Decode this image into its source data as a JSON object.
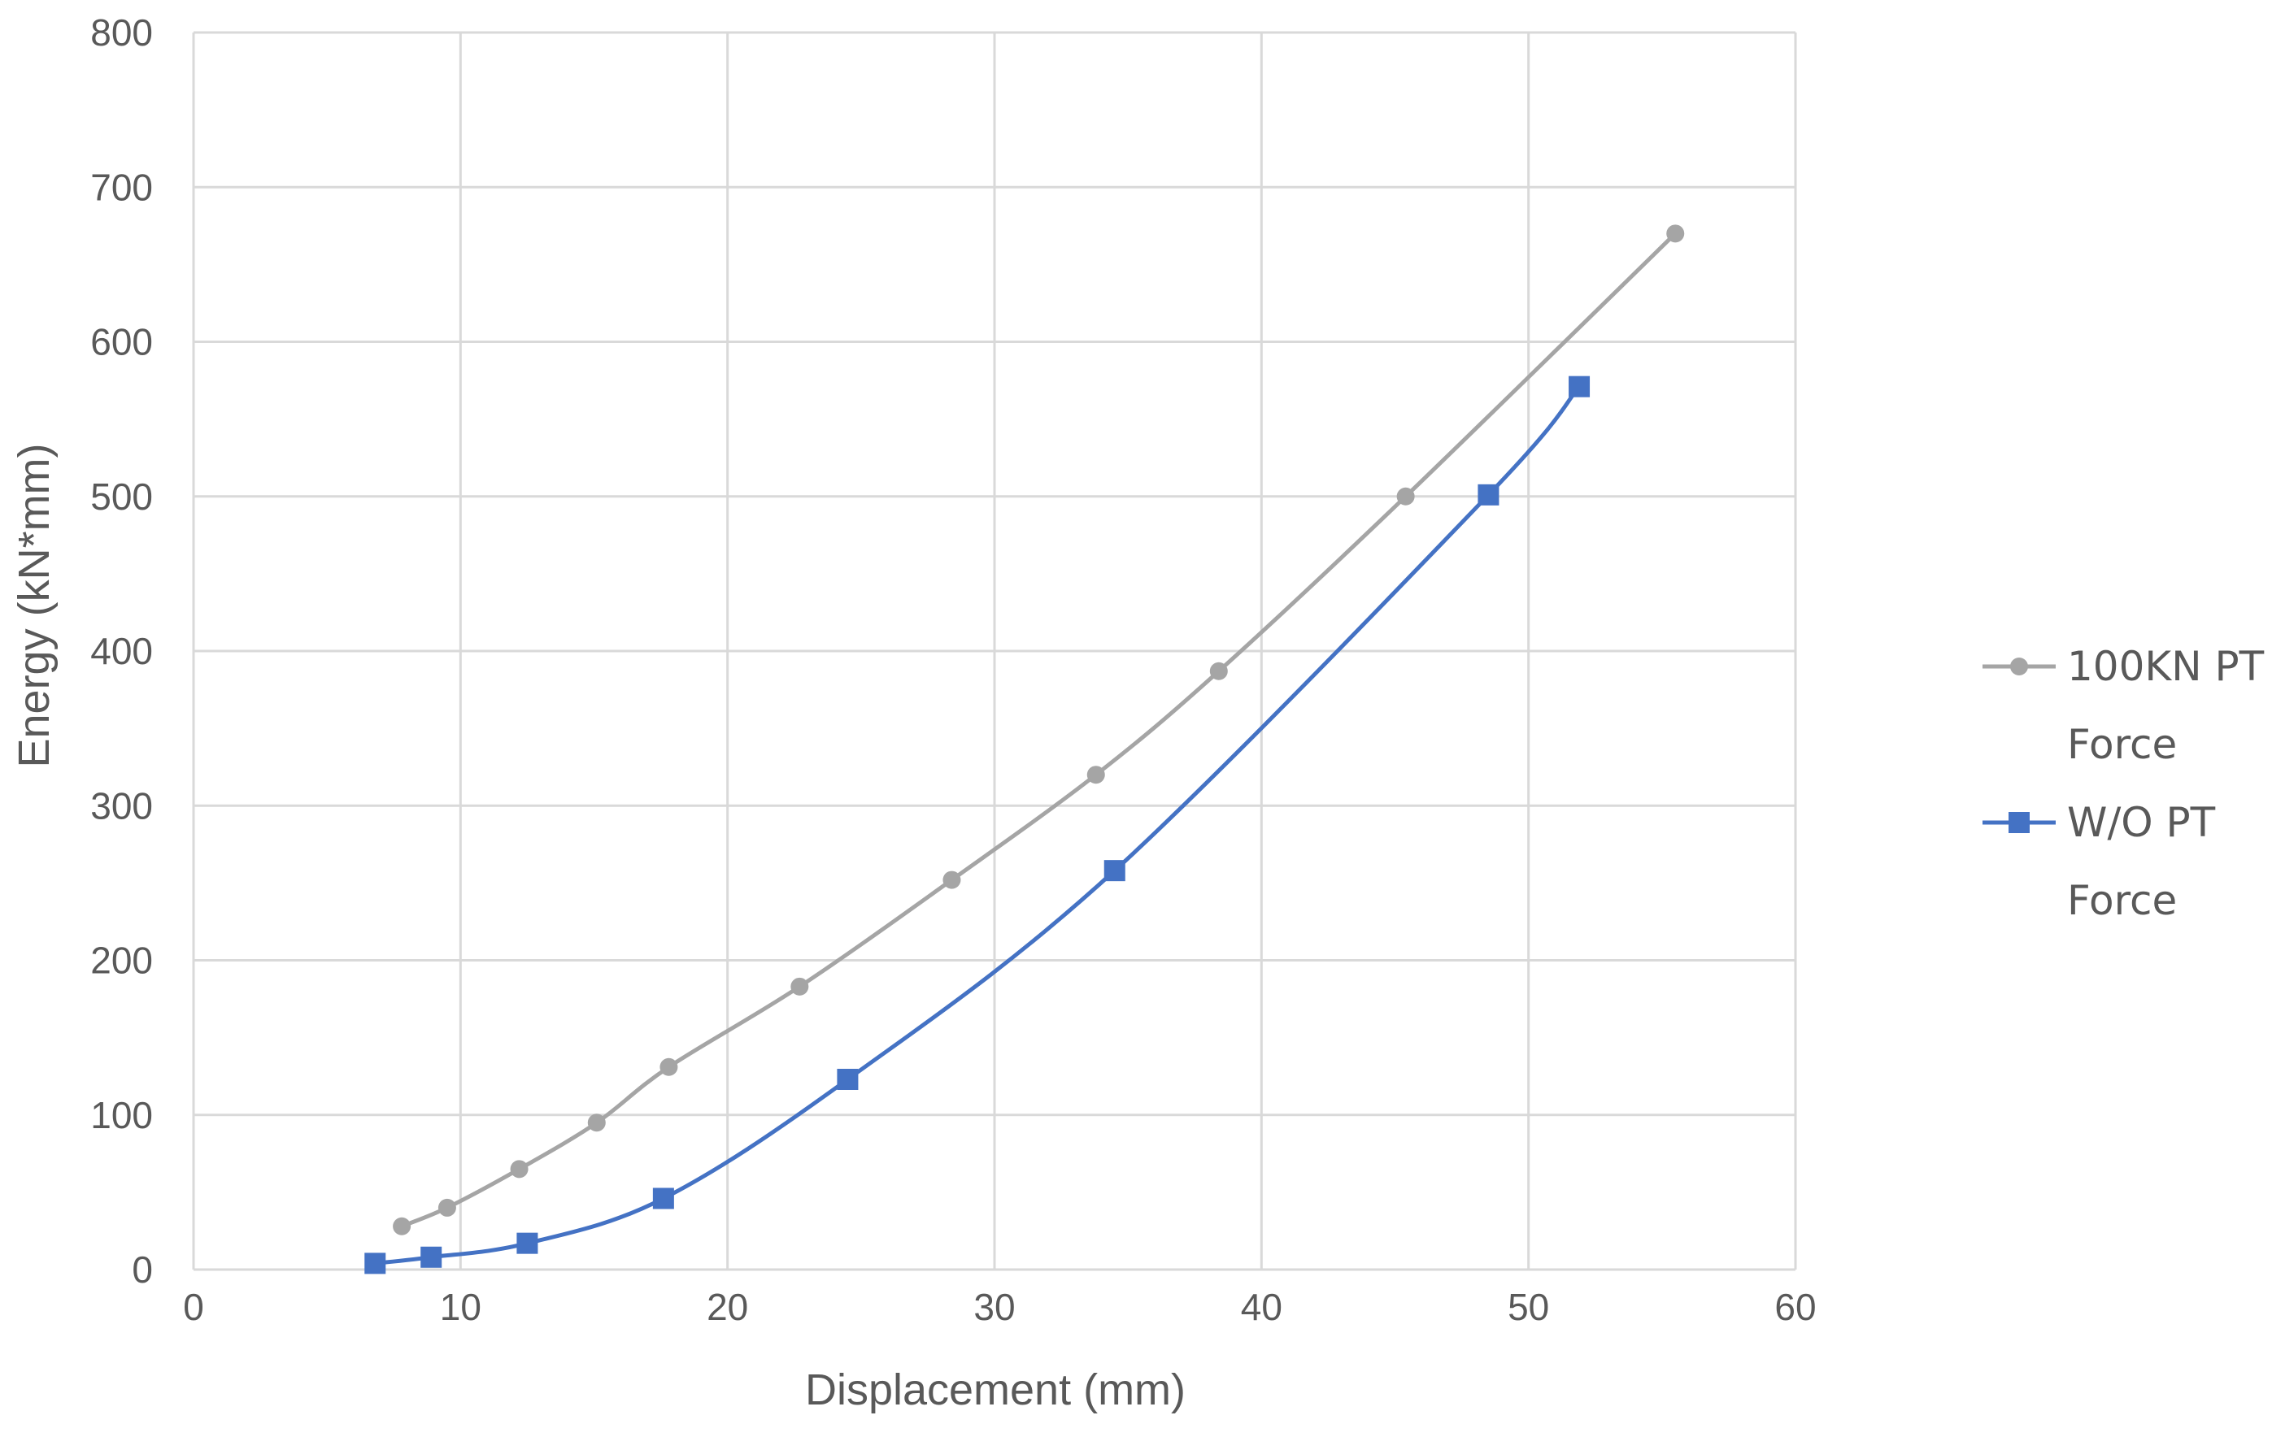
{
  "chart_data": {
    "type": "line",
    "title": "",
    "xlabel": "Displacement (mm)",
    "ylabel": "Energy (kN*mm)",
    "xlim": [
      0,
      60
    ],
    "ylim": [
      0,
      800
    ],
    "xticks": [
      0,
      10,
      20,
      30,
      40,
      50,
      60
    ],
    "yticks": [
      0,
      100,
      200,
      300,
      400,
      500,
      600,
      700,
      800
    ],
    "grid": true,
    "legend_position": "right",
    "series": [
      {
        "name": "100KN PT Force",
        "name_lines": [
          "100KN PT",
          "Force"
        ],
        "color": "#a5a5a5",
        "marker": "circle",
        "smooth": true,
        "points": [
          [
            7.8,
            28
          ],
          [
            9.5,
            40
          ],
          [
            12.2,
            65
          ],
          [
            15.1,
            95
          ],
          [
            17.8,
            131
          ],
          [
            22.7,
            183
          ],
          [
            28.4,
            252
          ],
          [
            33.8,
            320
          ],
          [
            38.4,
            387
          ],
          [
            45.4,
            500
          ],
          [
            55.5,
            670
          ]
        ]
      },
      {
        "name": "W/O PT Force",
        "name_lines": [
          "W/O PT",
          "Force"
        ],
        "color": "#4472c4",
        "marker": "square",
        "smooth": true,
        "points": [
          [
            6.8,
            4
          ],
          [
            8.9,
            8
          ],
          [
            12.5,
            17
          ],
          [
            17.6,
            46
          ],
          [
            24.5,
            123
          ],
          [
            34.5,
            258
          ],
          [
            48.5,
            501
          ],
          [
            51.9,
            571
          ]
        ]
      }
    ]
  }
}
